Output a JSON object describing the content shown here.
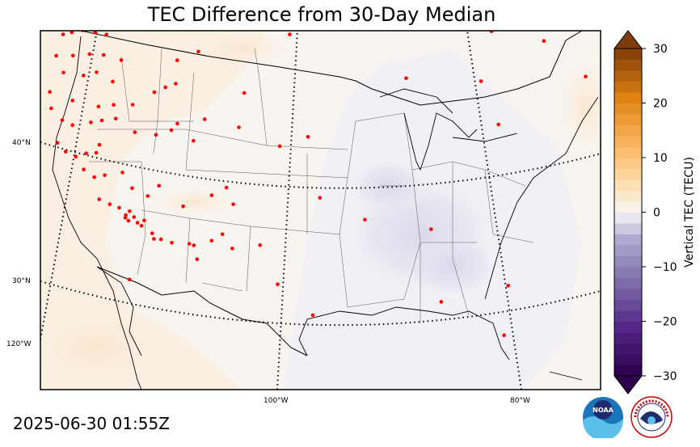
{
  "title": "TEC Difference from 30-Day Median",
  "timestamp": "2025-06-30 01:55Z",
  "logos": {
    "left": "NOAA",
    "right": "NATIONAL WEATHER SERVICE"
  },
  "colors": {
    "negative_dark": "#2d004b",
    "neutral": "#f7f7f7",
    "positive_dark": "#7f3b08",
    "station_marker": "#ff0000"
  },
  "chart_data": {
    "type": "heatmap",
    "title": "TEC Difference from 30-Day Median",
    "colorbar": {
      "label": "Vertical TEC (TECU)",
      "range": [
        -30,
        30
      ],
      "ticks": [
        -30,
        -20,
        -10,
        0,
        10,
        20,
        30
      ],
      "tick_labels": [
        "−30",
        "−20",
        "−10",
        "0",
        "10",
        "20",
        "30"
      ],
      "extend": "both",
      "colormap": "PuOr_r"
    },
    "lat_labels": [
      "40°N",
      "30°N"
    ],
    "lon_labels": [
      "120°W",
      "100°W",
      "80°W"
    ],
    "stations": [
      [
        -123.4,
        48.5
      ],
      [
        -122.3,
        47.6
      ],
      [
        -121.5,
        47.2
      ],
      [
        -120.6,
        47.4
      ],
      [
        -119.5,
        47.6
      ],
      [
        -118.3,
        47.5
      ],
      [
        -117.2,
        47.4
      ],
      [
        -116.3,
        48.3
      ],
      [
        -114.6,
        48.2
      ],
      [
        -124.1,
        46.8
      ],
      [
        -122.6,
        45.6
      ],
      [
        -120.9,
        45.7
      ],
      [
        -119.2,
        45.9
      ],
      [
        -117.8,
        45.9
      ],
      [
        -116.1,
        45.6
      ],
      [
        -122.2,
        44.4
      ],
      [
        -120.2,
        44.3
      ],
      [
        -118.8,
        44.6
      ],
      [
        -117.3,
        44.0
      ],
      [
        -124.0,
        42.9
      ],
      [
        -121.8,
        42.4
      ],
      [
        -119.2,
        42.1
      ],
      [
        -117.6,
        42.3
      ],
      [
        -115.6,
        42.4
      ],
      [
        -113.2,
        43.4
      ],
      [
        -112.0,
        43.8
      ],
      [
        -110.9,
        44.1
      ],
      [
        -110.5,
        45.8
      ],
      [
        -108.3,
        46.5
      ],
      [
        -124.2,
        41.7
      ],
      [
        -123.3,
        40.9
      ],
      [
        -122.3,
        40.6
      ],
      [
        -120.3,
        40.9
      ],
      [
        -119.1,
        41.1
      ],
      [
        -117.6,
        41.3
      ],
      [
        -115.8,
        40.4
      ],
      [
        -113.6,
        40.3
      ],
      [
        -111.9,
        40.7
      ],
      [
        -109.7,
        40.0
      ],
      [
        -111.2,
        41.2
      ],
      [
        -108.3,
        41.6
      ],
      [
        -104.8,
        41.1
      ],
      [
        -104.0,
        43.6
      ],
      [
        -100.6,
        39.8
      ],
      [
        -97.6,
        40.5
      ],
      [
        -124.3,
        39.2
      ],
      [
        -123.6,
        38.6
      ],
      [
        -122.6,
        38.3
      ],
      [
        -121.4,
        38.6
      ],
      [
        -120.3,
        38.7
      ],
      [
        -119.8,
        39.3
      ],
      [
        -122.0,
        37.4
      ],
      [
        -121.0,
        36.9
      ],
      [
        -119.8,
        37.1
      ],
      [
        -117.8,
        37.4
      ],
      [
        -117.0,
        36.3
      ],
      [
        -115.4,
        35.8
      ],
      [
        -114.0,
        36.6
      ],
      [
        -111.6,
        35.2
      ],
      [
        -108.3,
        36.1
      ],
      [
        -106.6,
        36.7
      ],
      [
        -106.0,
        35.5
      ],
      [
        -120.9,
        35.3
      ],
      [
        -119.8,
        35.0
      ],
      [
        -118.8,
        34.8
      ],
      [
        -118.2,
        34.3
      ],
      [
        -117.7,
        34.6
      ],
      [
        -117.3,
        34.2
      ],
      [
        -117.0,
        33.8
      ],
      [
        -116.6,
        33.6
      ],
      [
        -118.3,
        34.1
      ],
      [
        -118.0,
        33.9
      ],
      [
        -116.2,
        34.0
      ],
      [
        -115.5,
        33.1
      ],
      [
        -115.4,
        32.7
      ],
      [
        -114.6,
        32.7
      ],
      [
        -113.4,
        32.5
      ],
      [
        -111.4,
        32.5
      ],
      [
        -110.9,
        32.4
      ],
      [
        -110.7,
        31.4
      ],
      [
        -108.8,
        32.8
      ],
      [
        -107.5,
        33.3
      ],
      [
        -106.5,
        32.3
      ],
      [
        -119.0,
        29.6
      ],
      [
        -103.3,
        32.6
      ],
      [
        -101.5,
        29.8
      ],
      [
        -97.4,
        27.6
      ],
      [
        -96.4,
        36.1
      ],
      [
        -91.4,
        34.5
      ],
      [
        -83.9,
        33.7
      ],
      [
        -87.6,
        44.7
      ],
      [
        -77.7,
        41.1
      ],
      [
        -80.0,
        44.3
      ],
      [
        -69.4,
        44.2
      ],
      [
        -74.2,
        47.0
      ],
      [
        -68.9,
        48.2
      ],
      [
        -79.5,
        47.9
      ],
      [
        -90.3,
        48.5
      ],
      [
        -99.2,
        47.9
      ],
      [
        -64.7,
        45.6
      ],
      [
        -65.5,
        43.9
      ],
      [
        -73.8,
        25.7
      ],
      [
        -74.2,
        29.3
      ],
      [
        -82.0,
        28.4
      ]
    ]
  }
}
